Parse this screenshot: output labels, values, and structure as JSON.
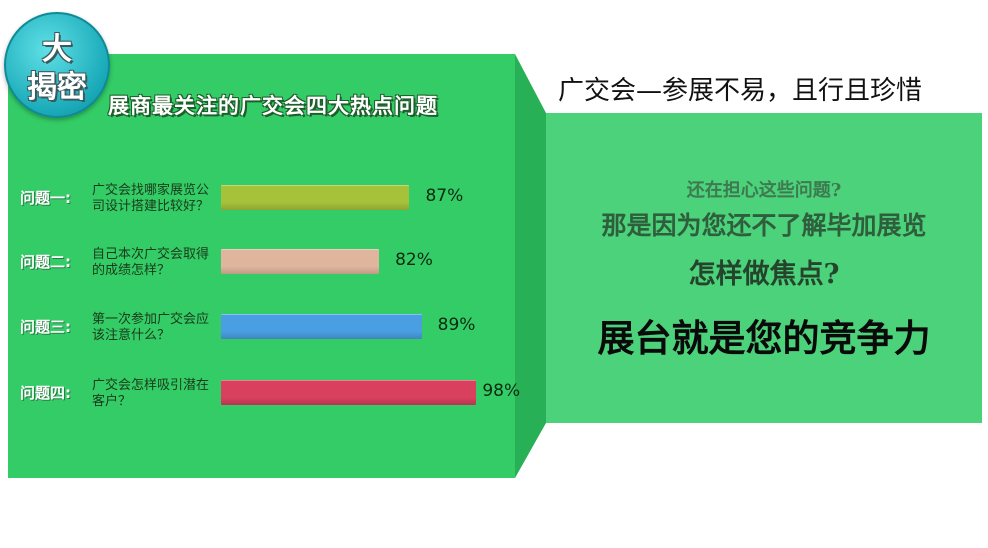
{
  "badge": {
    "line1": "大",
    "line2": "揭密",
    "color": "#19a9b8"
  },
  "heading": "广交会—参展不易，且行且珍惜",
  "chart_data": {
    "type": "bar",
    "orientation": "horizontal",
    "title": "展商最关注的广交会四大热点问题",
    "categories": [
      {
        "label": "问题一:",
        "text": "广交会找哪家展览公司设计搭建比较好？"
      },
      {
        "label": "问题二:",
        "text": "自己本次广交会取得的成绩怎样？"
      },
      {
        "label": "问题三:",
        "text": "第一次参加广交会应该注意什么？"
      },
      {
        "label": "问题四:",
        "text": "广交会怎样吸引潜在客户？"
      }
    ],
    "values": [
      87,
      82,
      89,
      98
    ],
    "value_labels": [
      "87%",
      "82%",
      "89%",
      "98%"
    ],
    "colors": [
      "#a6c23a",
      "#e0b59e",
      "#4a9ee2",
      "#d8405e"
    ],
    "unit": "%"
  },
  "promo": {
    "line1": "还在担心这些问题?",
    "line2": "那是因为您还不了解毕加展览",
    "line3": "怎样做焦点?",
    "line4": "展台就是您的竞争力"
  },
  "colors": {
    "panel": "#33cc66",
    "panel_right": "#4cd27a",
    "fold": "#27b055"
  }
}
